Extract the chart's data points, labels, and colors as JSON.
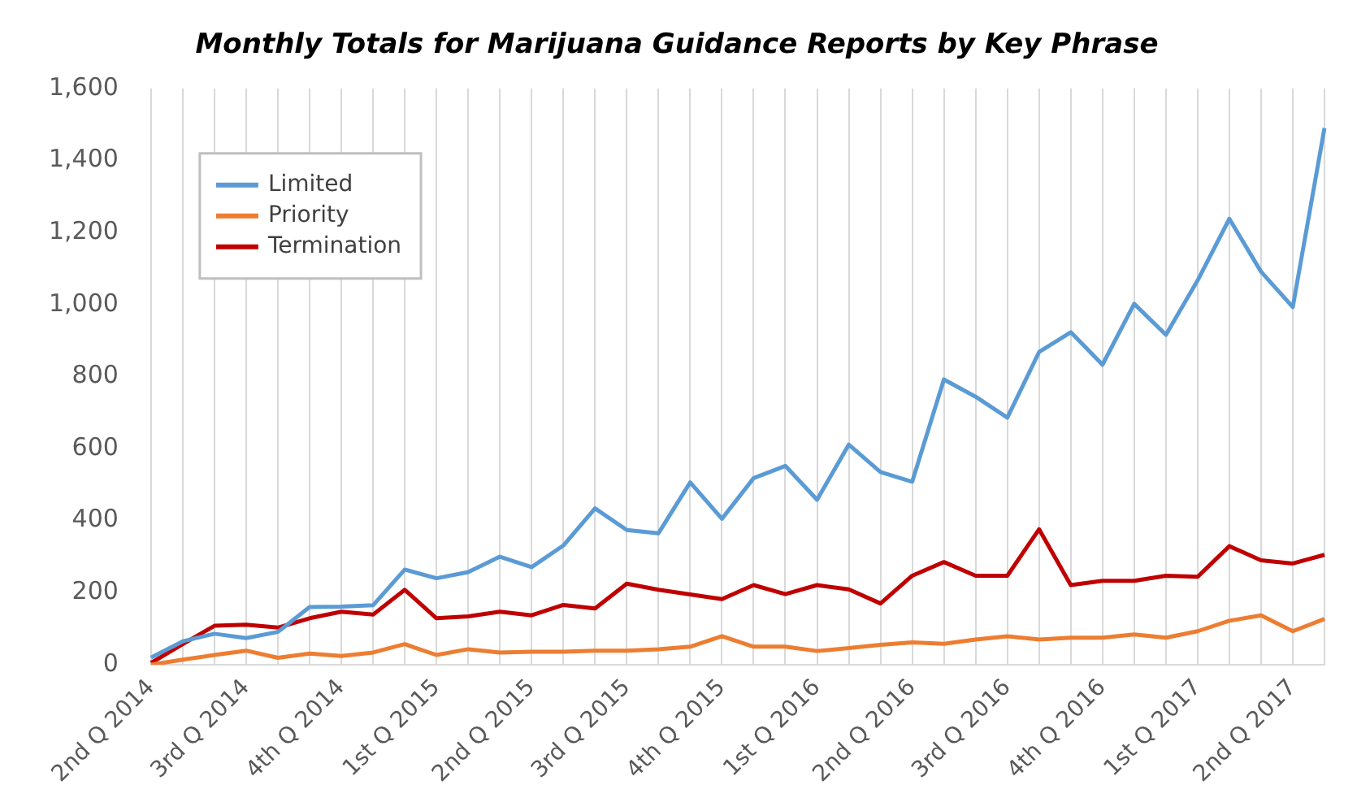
{
  "chart_data": {
    "type": "line",
    "title": "Monthly Totals for Marijuana Guidance Reports by Key Phrase",
    "categories": [
      "2nd Q 2014",
      null,
      null,
      "3rd Q 2014",
      null,
      null,
      "4th Q 2014",
      null,
      null,
      "1st Q 2015",
      null,
      null,
      "2nd Q 2015",
      null,
      null,
      "3rd Q 2015",
      null,
      null,
      "4th Q 2015",
      null,
      null,
      "1st Q 2016",
      null,
      null,
      "2nd Q 2016",
      null,
      null,
      "3rd Q 2016",
      null,
      null,
      "4th Q 2016",
      null,
      null,
      "1st Q 2017",
      null,
      null,
      "2nd Q 2017",
      null
    ],
    "series": [
      {
        "name": "Limited",
        "color": "#5b9bd5",
        "values": [
          20,
          65,
          86,
          74,
          91,
          160,
          161,
          165,
          264,
          240,
          257,
          300,
          271,
          331,
          434,
          374,
          365,
          506,
          405,
          518,
          552,
          458,
          611,
          535,
          508,
          792,
          744,
          686,
          868,
          923,
          833,
          1002,
          916,
          1067,
          1238,
          1091,
          993,
          1490
        ]
      },
      {
        "name": "Priority",
        "color": "#ed7d31",
        "values": [
          0,
          14,
          27,
          39,
          19,
          31,
          24,
          34,
          57,
          27,
          43,
          34,
          36,
          36,
          39,
          39,
          43,
          50,
          79,
          50,
          50,
          38,
          46,
          55,
          62,
          58,
          70,
          79,
          70,
          75,
          75,
          84,
          75,
          93,
          122,
          137,
          93,
          127
        ]
      },
      {
        "name": "Termination",
        "color": "#c00000",
        "values": [
          5,
          57,
          108,
          111,
          103,
          129,
          147,
          139,
          208,
          129,
          134,
          147,
          137,
          166,
          156,
          225,
          208,
          195,
          182,
          221,
          196,
          221,
          209,
          170,
          247,
          285,
          247,
          247,
          376,
          221,
          233,
          233,
          247,
          244,
          329,
          290,
          281,
          305
        ]
      }
    ],
    "ylim": [
      0,
      1600
    ],
    "yticks": [
      0,
      200,
      400,
      600,
      800,
      {
        "value": 1000,
        "label": "1,000"
      },
      {
        "value": 1200,
        "label": "1,200"
      },
      {
        "value": 1400,
        "label": "1,400"
      },
      {
        "value": 1600,
        "label": "1,600"
      }
    ],
    "grid": "x",
    "legend": "top left",
    "marker": "none",
    "line_style": "solid"
  }
}
